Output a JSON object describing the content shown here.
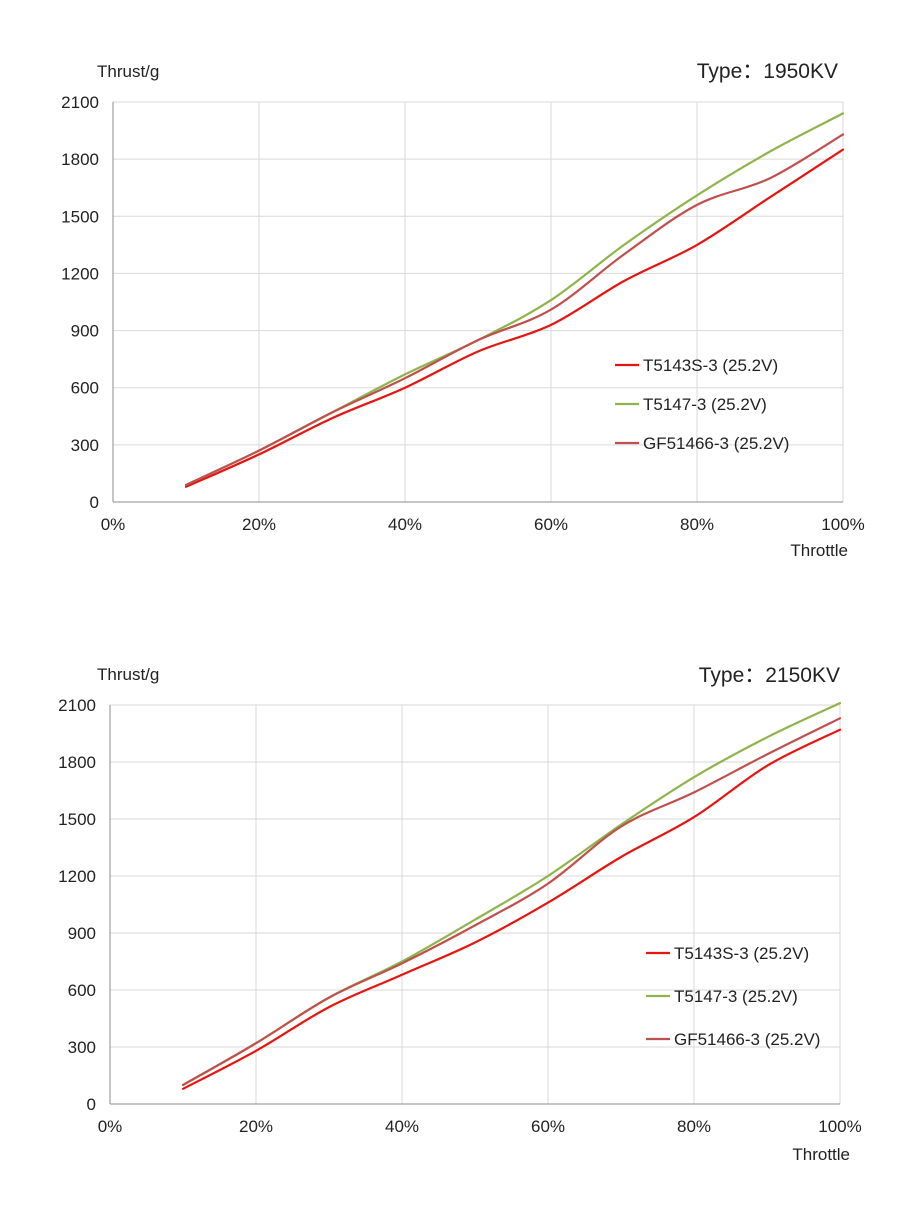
{
  "chart_data": [
    {
      "type": "line",
      "title": "Type：1950KV",
      "ylabel": "Thrust/g",
      "xlabel": "Throttle",
      "xlim": [
        0,
        100
      ],
      "ylim": [
        0,
        2100
      ],
      "x_ticks": [
        "0%",
        "20%",
        "40%",
        "60%",
        "80%",
        "100%"
      ],
      "y_ticks": [
        "0",
        "300",
        "600",
        "900",
        "1200",
        "1500",
        "1800",
        "2100"
      ],
      "grid": true,
      "legend_position": "right-middle",
      "x": [
        10,
        20,
        30,
        40,
        50,
        60,
        70,
        80,
        90,
        100
      ],
      "series": [
        {
          "name": "T5143S-3 (25.2V)",
          "color": "#e8140f",
          "values": [
            80,
            250,
            440,
            600,
            790,
            930,
            1160,
            1350,
            1600,
            1850
          ]
        },
        {
          "name": "T5147-3 (25.2V)",
          "color": "#8fb44c",
          "values": [
            90,
            270,
            470,
            670,
            850,
            1060,
            1350,
            1610,
            1840,
            2040
          ]
        },
        {
          "name": "GF51466-3 (25.2V)",
          "color": "#c0504d",
          "values": [
            90,
            270,
            470,
            650,
            850,
            1010,
            1300,
            1560,
            1700,
            1930
          ]
        }
      ]
    },
    {
      "type": "line",
      "title": "Type：2150KV",
      "ylabel": "Thrust/g",
      "xlabel": "Throttle",
      "xlim": [
        0,
        100
      ],
      "ylim": [
        0,
        2100
      ],
      "x_ticks": [
        "0%",
        "20%",
        "40%",
        "60%",
        "80%",
        "100%"
      ],
      "y_ticks": [
        "0",
        "300",
        "600",
        "900",
        "1200",
        "1500",
        "1800",
        "2100"
      ],
      "grid": true,
      "legend_position": "right-middle",
      "x": [
        10,
        20,
        30,
        40,
        50,
        60,
        70,
        80,
        90,
        100
      ],
      "series": [
        {
          "name": "T5143S-3 (25.2V)",
          "color": "#e8140f",
          "values": [
            80,
            280,
            510,
            680,
            850,
            1060,
            1300,
            1510,
            1780,
            1970
          ]
        },
        {
          "name": "T5147-3 (25.2V)",
          "color": "#8fb44c",
          "values": [
            100,
            320,
            560,
            750,
            970,
            1200,
            1470,
            1720,
            1930,
            2110
          ]
        },
        {
          "name": "GF51466-3 (25.2V)",
          "color": "#c0504d",
          "values": [
            100,
            320,
            560,
            740,
            940,
            1160,
            1460,
            1640,
            1840,
            2030
          ]
        }
      ]
    }
  ]
}
